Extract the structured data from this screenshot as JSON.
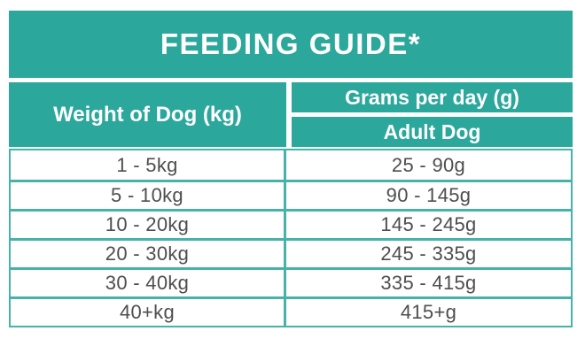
{
  "title": "FEEDING GUIDE*",
  "colors": {
    "teal_fill": "#2ba79c",
    "teal_border": "#47b2a8",
    "body_text": "#4e4e4e",
    "header_text": "#ffffff"
  },
  "table": {
    "col1_header": "Weight of Dog (kg)",
    "col2_header": "Grams per day (g)",
    "col2_subheader": "Adult Dog",
    "rows": [
      {
        "weight": "1 - 5kg",
        "grams": "25 - 90g"
      },
      {
        "weight": "5 - 10kg",
        "grams": "90 - 145g"
      },
      {
        "weight": "10 - 20kg",
        "grams": "145 - 245g"
      },
      {
        "weight": "20 - 30kg",
        "grams": "245 - 335g"
      },
      {
        "weight": "30 - 40kg",
        "grams": "335 - 415g"
      },
      {
        "weight": "40+kg",
        "grams": "415+g"
      }
    ]
  },
  "chart_data": {
    "type": "table",
    "title": "FEEDING GUIDE*",
    "columns": [
      "Weight of Dog (kg)",
      "Grams per day (g) — Adult Dog"
    ],
    "rows": [
      [
        "1 - 5kg",
        "25 - 90g"
      ],
      [
        "5 - 10kg",
        "90 - 145g"
      ],
      [
        "10 - 20kg",
        "145 - 245g"
      ],
      [
        "20 - 30kg",
        "245 - 335g"
      ],
      [
        "30 - 40kg",
        "335 - 415g"
      ],
      [
        "40+kg",
        "415+g"
      ]
    ]
  }
}
